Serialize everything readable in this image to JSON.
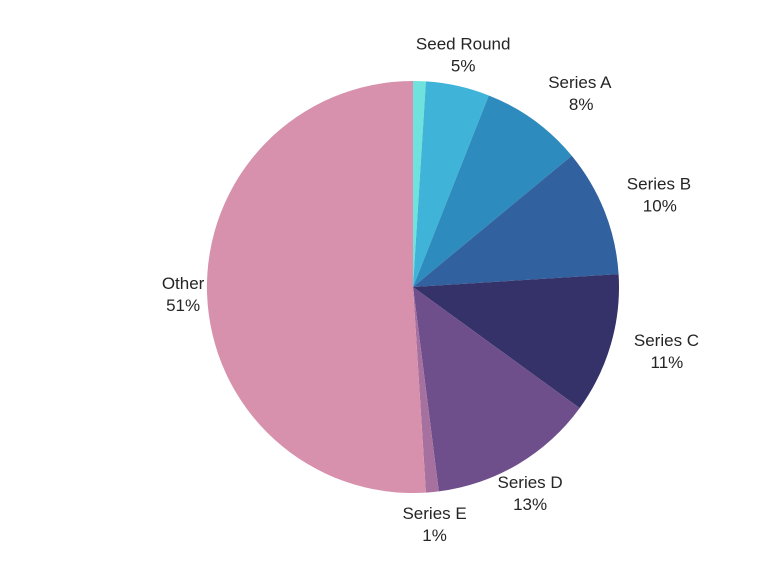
{
  "page": {
    "background": "#ffffff",
    "text_color": "#252525"
  },
  "chart_data": {
    "type": "pie",
    "title": "",
    "xlabel": "",
    "ylabel": "",
    "legend_position": "none",
    "grid": false,
    "start_angle_deg": 0,
    "direction": "clockwise",
    "label_style": "outside, two lines: name above percent",
    "label_color": "#252525",
    "slices": [
      {
        "label": "",
        "pct": 1,
        "pct_label": "",
        "color": "#70e2de"
      },
      {
        "label": "Seed Round",
        "pct": 5,
        "pct_label": "5%",
        "color": "#3fb4d8"
      },
      {
        "label": "Series A",
        "pct": 8,
        "pct_label": "8%",
        "color": "#2e8bbd"
      },
      {
        "label": "Series B",
        "pct": 10,
        "pct_label": "10%",
        "color": "#31619e"
      },
      {
        "label": "Series C",
        "pct": 11,
        "pct_label": "11%",
        "color": "#343269"
      },
      {
        "label": "Series D",
        "pct": 13,
        "pct_label": "13%",
        "color": "#6f4f8b"
      },
      {
        "label": "Series E",
        "pct": 1,
        "pct_label": "1%",
        "color": "#a7719f"
      },
      {
        "label": "Other",
        "pct": 51,
        "pct_label": "51%",
        "color": "#d791ac"
      }
    ]
  }
}
